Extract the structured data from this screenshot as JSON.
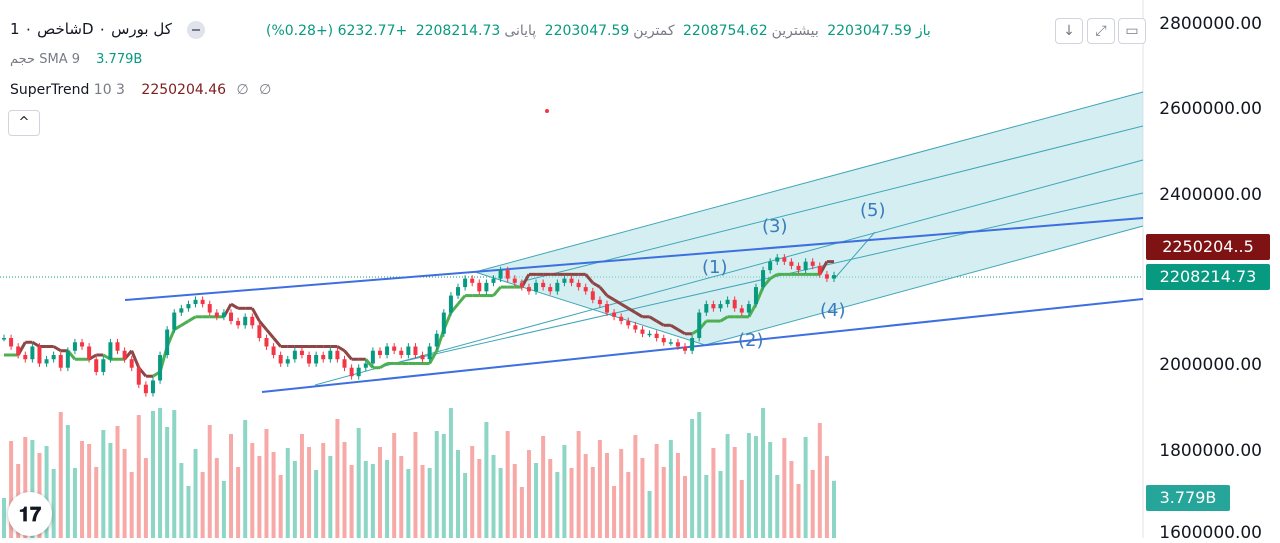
{
  "header": {
    "title": "شاخص ۰ 1D ۰ کل بورس",
    "ohlc": {
      "open_label": "باز",
      "open": "2203047.59",
      "high_label": "بیشترین",
      "high": "2208754.62",
      "low_label": "کمترین",
      "low": "2203047.59",
      "close_label": "پایانی",
      "close": "2208214.73",
      "change": "+6232.77 (+0.28%)"
    }
  },
  "volume_legend": {
    "label": "حجم",
    "indicator": "SMA 9",
    "value": "3.779B"
  },
  "supertrend_legend": {
    "name": "SuperTrend",
    "params": "10 3",
    "value": "2250204.46",
    "empty1": "∅",
    "empty2": "∅"
  },
  "toolbar": {
    "collapse": "^",
    "down_arrow": "↓",
    "fullscreen": "⤢",
    "restore": "▭"
  },
  "price_tags": {
    "supertrend": "2250204..5",
    "last": "2208214.73",
    "volume": "3.779B"
  },
  "colors": {
    "up": "#089981",
    "down": "#f23645",
    "vol_up": "#8dd6c5",
    "vol_down": "#f7a9a7",
    "st_up": "#4caf50",
    "st_down": "#8d4545",
    "trend_line": "#3d6fe0",
    "channel": "#b8e2e8",
    "channel_line": "#3fa6b8"
  },
  "icons": {
    "logo": "tradingview-logo-icon"
  },
  "chart_data": {
    "type": "candlestick",
    "y_axis_ticks": [
      "2800000.00",
      "2600000.00",
      "2400000.00",
      "2000000.00",
      "1800000.00",
      "1600000.00"
    ],
    "ylim": [
      1600000,
      2820000
    ],
    "last_close": 2208214.73,
    "supertrend_value": 2250204.46,
    "volume_last": "3.779B",
    "closes": [
      2060000,
      2040000,
      2020000,
      2010000,
      2040000,
      2000000,
      2010000,
      2020000,
      1990000,
      2030000,
      2050000,
      2040000,
      2010000,
      1980000,
      2010000,
      2050000,
      2030000,
      2010000,
      1990000,
      1950000,
      1930000,
      1960000,
      2020000,
      2080000,
      2120000,
      2130000,
      2140000,
      2150000,
      2140000,
      2120000,
      2110000,
      2120000,
      2100000,
      2090000,
      2110000,
      2090000,
      2060000,
      2040000,
      2020000,
      2000000,
      2010000,
      2030000,
      2020000,
      2000000,
      2020000,
      2010000,
      2030000,
      2010000,
      1990000,
      1970000,
      1990000,
      2000000,
      2030000,
      2020000,
      2040000,
      2030000,
      2020000,
      2040000,
      2020000,
      2010000,
      2040000,
      2070000,
      2120000,
      2160000,
      2180000,
      2200000,
      2190000,
      2170000,
      2190000,
      2200000,
      2220000,
      2200000,
      2190000,
      2180000,
      2170000,
      2190000,
      2180000,
      2170000,
      2190000,
      2200000,
      2190000,
      2180000,
      2170000,
      2150000,
      2140000,
      2120000,
      2110000,
      2100000,
      2090000,
      2080000,
      2070000,
      2070000,
      2060000,
      2050000,
      2050000,
      2040000,
      2030000,
      2060000,
      2120000,
      2140000,
      2130000,
      2140000,
      2150000,
      2130000,
      2120000,
      2140000,
      2180000,
      2220000,
      2240000,
      2250000,
      2240000,
      2230000,
      2220000,
      2240000,
      2230000,
      2210000,
      2200000,
      2208214.73
    ],
    "wave_labels": [
      "(1)",
      "(2)",
      "(3)",
      "(4)",
      "(5)"
    ]
  }
}
